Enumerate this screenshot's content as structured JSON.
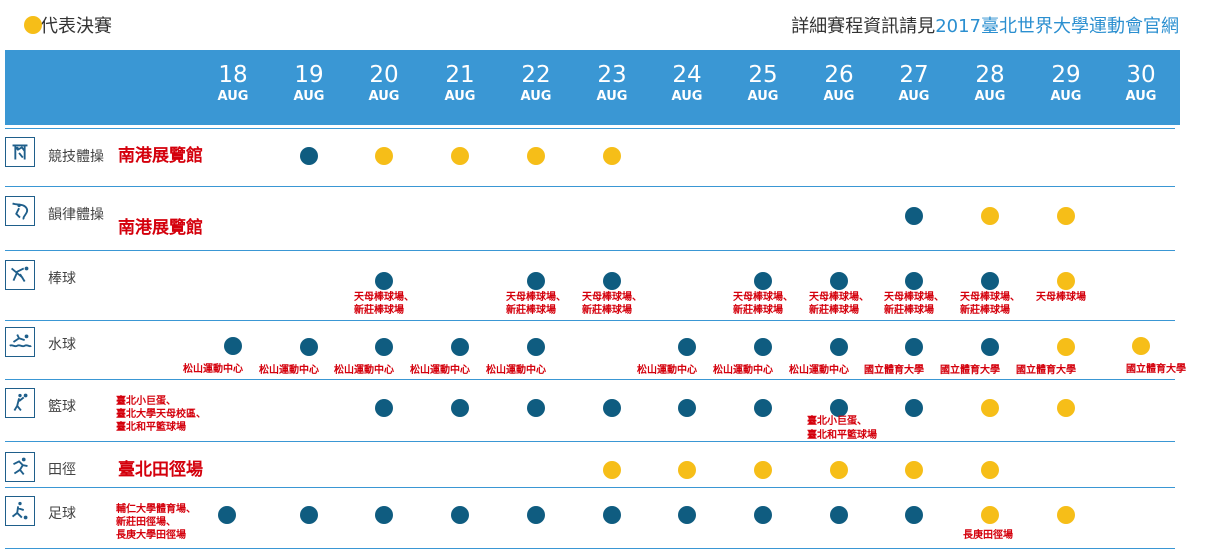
{
  "legend": {
    "label": "代表決賽",
    "final_color": "#F6BE18",
    "prelim_color": "#0F5C80"
  },
  "note": {
    "prefix": "詳細賽程資訊請見",
    "link": "2017臺北世界大學運動會官網"
  },
  "header_color": "#3A97D4",
  "dates": [
    {
      "day": "18",
      "month": "AUG"
    },
    {
      "day": "19",
      "month": "AUG"
    },
    {
      "day": "20",
      "month": "AUG"
    },
    {
      "day": "21",
      "month": "AUG"
    },
    {
      "day": "22",
      "month": "AUG"
    },
    {
      "day": "23",
      "month": "AUG"
    },
    {
      "day": "24",
      "month": "AUG"
    },
    {
      "day": "25",
      "month": "AUG"
    },
    {
      "day": "26",
      "month": "AUG"
    },
    {
      "day": "27",
      "month": "AUG"
    },
    {
      "day": "28",
      "month": "AUG"
    },
    {
      "day": "29",
      "month": "AUG"
    },
    {
      "day": "30",
      "month": "AUG"
    }
  ],
  "sports": [
    {
      "name": "競技體操",
      "icon": "gymnastics-icon",
      "venue": "南港展覽館",
      "events": [
        {
          "date": "19",
          "type": "prelim"
        },
        {
          "date": "20",
          "type": "final"
        },
        {
          "date": "21",
          "type": "final"
        },
        {
          "date": "22",
          "type": "final"
        },
        {
          "date": "23",
          "type": "final"
        }
      ]
    },
    {
      "name": "韻律體操",
      "icon": "rhythmic-gymnastics-icon",
      "venue": "南港展覽館",
      "events": [
        {
          "date": "27",
          "type": "prelim"
        },
        {
          "date": "28",
          "type": "final"
        },
        {
          "date": "29",
          "type": "final"
        }
      ]
    },
    {
      "name": "棒球",
      "icon": "baseball-icon",
      "events": [
        {
          "date": "20",
          "type": "prelim",
          "venue": [
            "天母棒球場、",
            "新莊棒球場"
          ]
        },
        {
          "date": "22",
          "type": "prelim",
          "venue": [
            "天母棒球場、",
            "新莊棒球場"
          ]
        },
        {
          "date": "23",
          "type": "prelim",
          "venue": [
            "天母棒球場、",
            "新莊棒球場"
          ]
        },
        {
          "date": "25",
          "type": "prelim",
          "venue": [
            "天母棒球場、",
            "新莊棒球場"
          ]
        },
        {
          "date": "26",
          "type": "prelim",
          "venue": [
            "天母棒球場、",
            "新莊棒球場"
          ]
        },
        {
          "date": "27",
          "type": "prelim",
          "venue": [
            "天母棒球場、",
            "新莊棒球場"
          ]
        },
        {
          "date": "28",
          "type": "prelim",
          "venue": [
            "天母棒球場、",
            "新莊棒球場"
          ]
        },
        {
          "date": "29",
          "type": "final",
          "venue": [
            "天母棒球場"
          ]
        }
      ]
    },
    {
      "name": "水球",
      "icon": "water-polo-icon",
      "events": [
        {
          "date": "18",
          "type": "prelim",
          "venue": [
            "松山運動中心"
          ]
        },
        {
          "date": "19",
          "type": "prelim",
          "venue": [
            "松山運動中心"
          ]
        },
        {
          "date": "20",
          "type": "prelim",
          "venue": [
            "松山運動中心"
          ]
        },
        {
          "date": "21",
          "type": "prelim",
          "venue": [
            "松山運動中心"
          ]
        },
        {
          "date": "22",
          "type": "prelim",
          "venue": [
            "松山運動中心"
          ]
        },
        {
          "date": "24",
          "type": "prelim",
          "venue": [
            "松山運動中心"
          ]
        },
        {
          "date": "25",
          "type": "prelim",
          "venue": [
            "松山運動中心"
          ]
        },
        {
          "date": "26",
          "type": "prelim",
          "venue": [
            "松山運動中心"
          ]
        },
        {
          "date": "27",
          "type": "prelim",
          "venue": [
            "國立體育大學"
          ]
        },
        {
          "date": "28",
          "type": "prelim",
          "venue": [
            "國立體育大學"
          ]
        },
        {
          "date": "29",
          "type": "final",
          "venue": [
            "國立體育大學"
          ]
        },
        {
          "date": "30",
          "type": "final",
          "venue": [
            "國立體育大學"
          ]
        }
      ]
    },
    {
      "name": "籃球",
      "icon": "basketball-icon",
      "venue_lines": [
        "臺北小巨蛋、",
        "臺北大學天母校區、",
        "臺北和平籃球場"
      ],
      "events": [
        {
          "date": "20",
          "type": "prelim"
        },
        {
          "date": "21",
          "type": "prelim"
        },
        {
          "date": "22",
          "type": "prelim"
        },
        {
          "date": "23",
          "type": "prelim"
        },
        {
          "date": "24",
          "type": "prelim"
        },
        {
          "date": "25",
          "type": "prelim"
        },
        {
          "date": "26",
          "type": "prelim",
          "venue": [
            "臺北小巨蛋、",
            "臺北和平籃球場"
          ]
        },
        {
          "date": "27",
          "type": "prelim"
        },
        {
          "date": "28",
          "type": "final"
        },
        {
          "date": "29",
          "type": "final"
        }
      ]
    },
    {
      "name": "田徑",
      "icon": "athletics-icon",
      "venue": "臺北田徑場",
      "events": [
        {
          "date": "23",
          "type": "final"
        },
        {
          "date": "24",
          "type": "final"
        },
        {
          "date": "25",
          "type": "final"
        },
        {
          "date": "26",
          "type": "final"
        },
        {
          "date": "27",
          "type": "final"
        },
        {
          "date": "28",
          "type": "final"
        }
      ]
    },
    {
      "name": "足球",
      "icon": "football-icon",
      "venue_lines": [
        "輔仁大學體育場、",
        "新莊田徑場、",
        "長庚大學田徑場"
      ],
      "events": [
        {
          "date": "18",
          "type": "prelim"
        },
        {
          "date": "19",
          "type": "prelim"
        },
        {
          "date": "20",
          "type": "prelim"
        },
        {
          "date": "21",
          "type": "prelim"
        },
        {
          "date": "22",
          "type": "prelim"
        },
        {
          "date": "23",
          "type": "prelim"
        },
        {
          "date": "24",
          "type": "prelim"
        },
        {
          "date": "25",
          "type": "prelim"
        },
        {
          "date": "26",
          "type": "prelim"
        },
        {
          "date": "27",
          "type": "prelim"
        },
        {
          "date": "28",
          "type": "final",
          "venue": [
            "長庚田徑場"
          ]
        },
        {
          "date": "29",
          "type": "final"
        }
      ]
    }
  ]
}
